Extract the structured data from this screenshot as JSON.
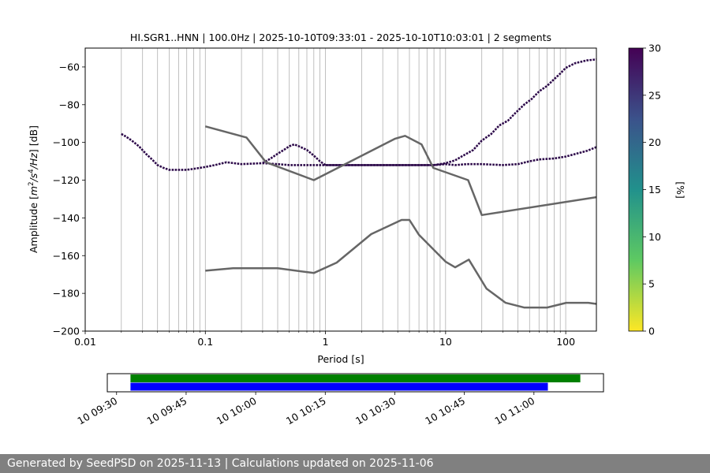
{
  "chart_data": [
    {
      "type": "line",
      "title": "HI.SGR1..HNN | 100.0Hz | 2025-10-10T09:33:01 - 2025-10-10T10:03:01 | 2 segments",
      "xlabel": "Period [s]",
      "ylabel_parts": [
        "Amplitude [",
        "m",
        "2",
        "/",
        "s",
        "4",
        "/",
        "Hz",
        "] [dB]"
      ],
      "xscale": "log",
      "xlim": [
        0.01,
        180
      ],
      "ylim": [
        -200,
        -50
      ],
      "x_tick_values": [
        0.01,
        0.1,
        1,
        10,
        100
      ],
      "x_tick_labels": [
        "0.01",
        "0.1",
        "1",
        "10",
        "100"
      ],
      "y_tick_values": [
        -200,
        -180,
        -160,
        -140,
        -120,
        -100,
        -80,
        -60
      ],
      "y_tick_labels": [
        "−200",
        "−180",
        "−160",
        "−140",
        "−120",
        "−100",
        "−80",
        "−60"
      ],
      "grid": "vertical",
      "series": [
        {
          "role": "noise-model-high",
          "color": "#666666",
          "x": [
            0.1,
            0.22,
            0.32,
            0.8,
            3.8,
            4.6,
            6.3,
            7.9,
            15.4,
            20,
            180
          ],
          "y": [
            -91.5,
            -97.4,
            -110.5,
            -120,
            -98,
            -96.5,
            -101,
            -113.5,
            -120,
            -138.5,
            -129
          ]
        },
        {
          "role": "noise-model-low",
          "color": "#666666",
          "x": [
            0.1,
            0.17,
            0.4,
            0.8,
            1.24,
            2.4,
            4.3,
            5,
            6,
            10,
            12,
            15.6,
            21.9,
            31.6,
            45,
            70,
            101,
            154,
            180
          ],
          "y": [
            -168,
            -166.7,
            -166.7,
            -169.2,
            -163.7,
            -148.6,
            -141.1,
            -141.1,
            -149,
            -163.2,
            -166.2,
            -162.1,
            -177.5,
            -185,
            -187.5,
            -187.5,
            -185,
            -185,
            -185.6
          ]
        },
        {
          "role": "psd-lower-branch",
          "color": "#2d0a4a",
          "x": [
            0.02,
            0.022,
            0.025,
            0.028,
            0.032,
            0.036,
            0.04,
            0.045,
            0.05,
            0.06,
            0.07,
            0.08,
            0.1,
            0.12,
            0.15,
            0.2,
            0.3,
            0.4,
            0.5,
            0.6,
            0.7,
            0.8,
            1,
            2,
            5,
            8,
            10,
            12,
            15,
            20,
            30,
            40,
            50,
            60,
            80,
            100,
            150,
            180
          ],
          "y": [
            -95.5,
            -97,
            -99.5,
            -102,
            -106,
            -109,
            -112,
            -113.5,
            -114.5,
            -114.5,
            -114.5,
            -114,
            -113,
            -112,
            -110.5,
            -111.5,
            -111,
            -111.5,
            -112,
            -112,
            -112,
            -112,
            -112,
            -112,
            -112,
            -112,
            -111.5,
            -112,
            -111.5,
            -111.5,
            -112,
            -111.5,
            -110,
            -109,
            -108.5,
            -107.5,
            -104.5,
            -102.5
          ]
        },
        {
          "role": "psd-upper-branch",
          "color": "#2d0a4a",
          "x": [
            0.3,
            0.35,
            0.4,
            0.45,
            0.5,
            0.55,
            0.6,
            0.7,
            0.8,
            0.9,
            1,
            8,
            9,
            10,
            12,
            14,
            17,
            20,
            24,
            28,
            33,
            38,
            45,
            52,
            60,
            70,
            80,
            90,
            100,
            120,
            150,
            180
          ],
          "y": [
            -111,
            -108.5,
            -106,
            -104,
            -102,
            -101,
            -102,
            -104,
            -107,
            -110,
            -112,
            -112,
            -111.5,
            -111,
            -109.5,
            -107,
            -104,
            -99,
            -95.5,
            -91,
            -88.5,
            -84.5,
            -80,
            -77,
            -73,
            -70,
            -66.5,
            -63.5,
            -60.5,
            -58,
            -56.5,
            -56
          ]
        }
      ],
      "colorbar": {
        "label": "[%]",
        "min": 0,
        "max": 30,
        "tick_values": [
          0,
          5,
          10,
          15,
          20,
          25,
          30
        ],
        "tick_labels": [
          "0",
          "5",
          "10",
          "15",
          "20",
          "25",
          "30"
        ],
        "colors": [
          "#fde725",
          "#5ec962",
          "#21918c",
          "#3b528b",
          "#440154"
        ]
      }
    },
    {
      "type": "timeline",
      "xlim": [
        "2025-10-10T09:28:00",
        "2025-10-10T11:15:00"
      ],
      "x_tick_values": [
        "2025-10-10T09:30:00",
        "2025-10-10T09:45:00",
        "2025-10-10T10:00:00",
        "2025-10-10T10:15:00",
        "2025-10-10T10:30:00",
        "2025-10-10T10:45:00",
        "2025-10-10T11:00:00"
      ],
      "x_tick_labels": [
        "10 09:30",
        "10 09:45",
        "10 10:00",
        "10 10:15",
        "10 10:30",
        "10 10:45",
        "10 11:00"
      ],
      "bars": [
        {
          "color": "#008000",
          "start": "2025-10-10T09:33:00",
          "end": "2025-10-10T11:10:00",
          "row": 0
        },
        {
          "color": "#0000ff",
          "start": "2025-10-10T09:33:00",
          "end": "2025-10-10T11:03:00",
          "row": 1
        }
      ]
    }
  ],
  "footer": {
    "text": "Generated by SeedPSD on 2025-11-13 | Calculations updated on 2025-11-06"
  }
}
